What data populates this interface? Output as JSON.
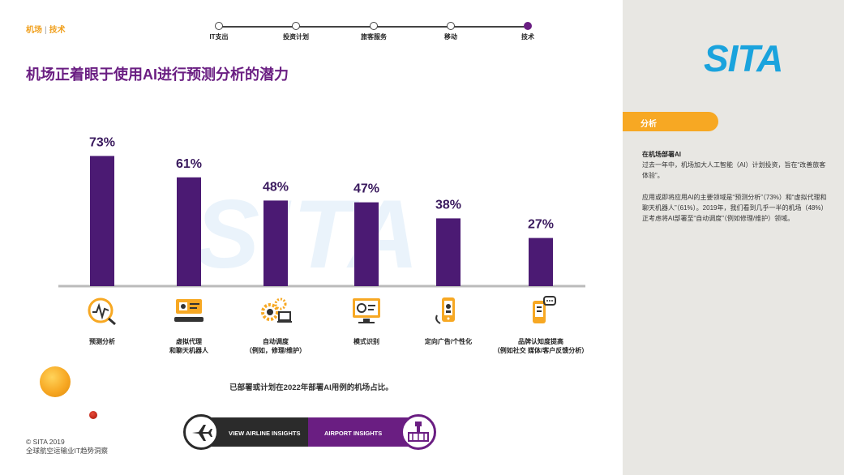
{
  "breadcrumb": {
    "section": "机场",
    "separator": "|",
    "topic": "技术"
  },
  "timeline": {
    "steps": [
      {
        "label": "IT支出"
      },
      {
        "label": "投资计划"
      },
      {
        "label": "旅客服务"
      },
      {
        "label": "移动"
      },
      {
        "label": "技术"
      }
    ],
    "active_index": 4
  },
  "title": "机场正着眼于使用AI进行预测分析的潜力",
  "watermark": "SITA",
  "chart_data": {
    "type": "bar",
    "title": "机场正着眼于使用AI进行预测分析的潜力",
    "categories": [
      "预测分析",
      "虚拟代理和聊天机器人",
      "自动调度（例如，修理/维护）",
      "模式识别",
      "定向广告/个性化",
      "品牌认知度提高（例如社交 媒体/客户反馈分析）"
    ],
    "values": [
      73,
      61,
      48,
      47,
      38,
      27
    ],
    "value_labels": [
      "73%",
      "61%",
      "48%",
      "47%",
      "38%",
      "27%"
    ],
    "unit": "%",
    "ylim": [
      0,
      100
    ],
    "xlabel": "",
    "ylabel": "",
    "grid": false,
    "bar_color": "#4b1a73",
    "note": "已部署或计划在2022年部署AI用例的机场占比。"
  },
  "categories": [
    {
      "line1": "预测分析",
      "line2": "",
      "icon": "analytics-icon"
    },
    {
      "line1": "虚拟代理",
      "line2": "和聊天机器人",
      "icon": "chatbot-icon"
    },
    {
      "line1": "自动调度",
      "line2": "（例如，修理/维护）",
      "icon": "gears-icon"
    },
    {
      "line1": "模式识别",
      "line2": "",
      "icon": "monitor-icon"
    },
    {
      "line1": "定向广告/个性化",
      "line2": "",
      "icon": "mobile-ad-icon"
    },
    {
      "line1": "品牌认知度提高",
      "line2": "（例如社交 媒体/客户反馈分析）",
      "icon": "mobile-feedback-icon"
    }
  ],
  "footnote": "已部署或计划在2022年部署AI用例的机场占比。",
  "nav": {
    "airline_label": "VIEW AIRLINE INSIGHTS",
    "airport_label": "AIRPORT INSIGHTS"
  },
  "copyright": {
    "line1": "© SITA 2019",
    "line2": "全球航空运输业IT趋势洞察"
  },
  "sidebar": {
    "logo": "SITA",
    "tab_label": "分析",
    "heading": "在机场部署AI",
    "para1": "过去一年中，机场加大人工智能（AI）计划投资，旨在“改善旅客体验”。",
    "para2": "应用或即将应用AI的主要领域是“预测分析”（73%）和“虚拟代理和聊天机器人”（61%）。2019年，我们看到几乎一半的机场（48%）正考虑将AI部署至“自动调度”（例如修理/维护）领域。"
  },
  "colors": {
    "purple": "#6a1e82",
    "bar": "#4b1a73",
    "orange": "#f7a823",
    "sita_blue": "#1aa3dd",
    "panel_bg": "#e8e7e3"
  }
}
